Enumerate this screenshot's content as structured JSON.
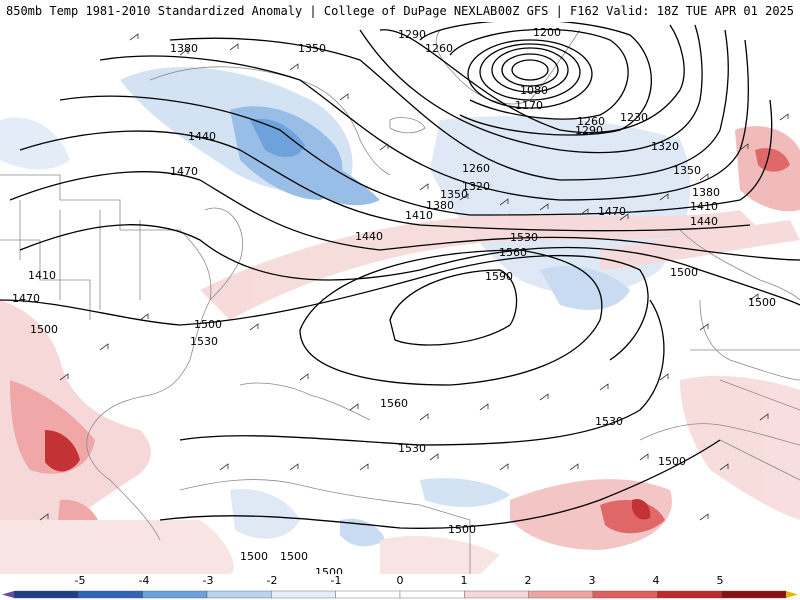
{
  "header": {
    "left": "850mb Temp 1981-2010 Standardized Anomaly | College of DuPage NEXLAB",
    "right": "00Z GFS | F162 Valid: 18Z TUE APR 01 2025"
  },
  "contour_labels": [
    "1380",
    "1350",
    "1290",
    "1260",
    "1200",
    "1080",
    "1170",
    "1230",
    "1260",
    "1290",
    "1320",
    "1350",
    "1380",
    "1410",
    "1440",
    "1440",
    "1470",
    "1470",
    "1410",
    "1470",
    "1260",
    "1320",
    "1350",
    "1380",
    "1410",
    "1440",
    "1530",
    "1560",
    "1590",
    "1500",
    "1500",
    "1530",
    "1500",
    "1560",
    "1530",
    "1530",
    "1500",
    "1500",
    "1500",
    "1500",
    "1500",
    "1500"
  ],
  "colorbar": {
    "ticks": [
      "-5",
      "-4",
      "-3",
      "-2",
      "-1",
      "0",
      "1",
      "2",
      "3",
      "4",
      "5"
    ],
    "colors": [
      "#6a4aa8",
      "#1f3f87",
      "#2e66b8",
      "#6aa3dc",
      "#b7d3ee",
      "#e4eef8",
      "#ffffff",
      "#ffffff",
      "#f6d6d6",
      "#efa3a3",
      "#e06060",
      "#c0282a",
      "#8a0f12",
      "#e8b400"
    ]
  }
}
